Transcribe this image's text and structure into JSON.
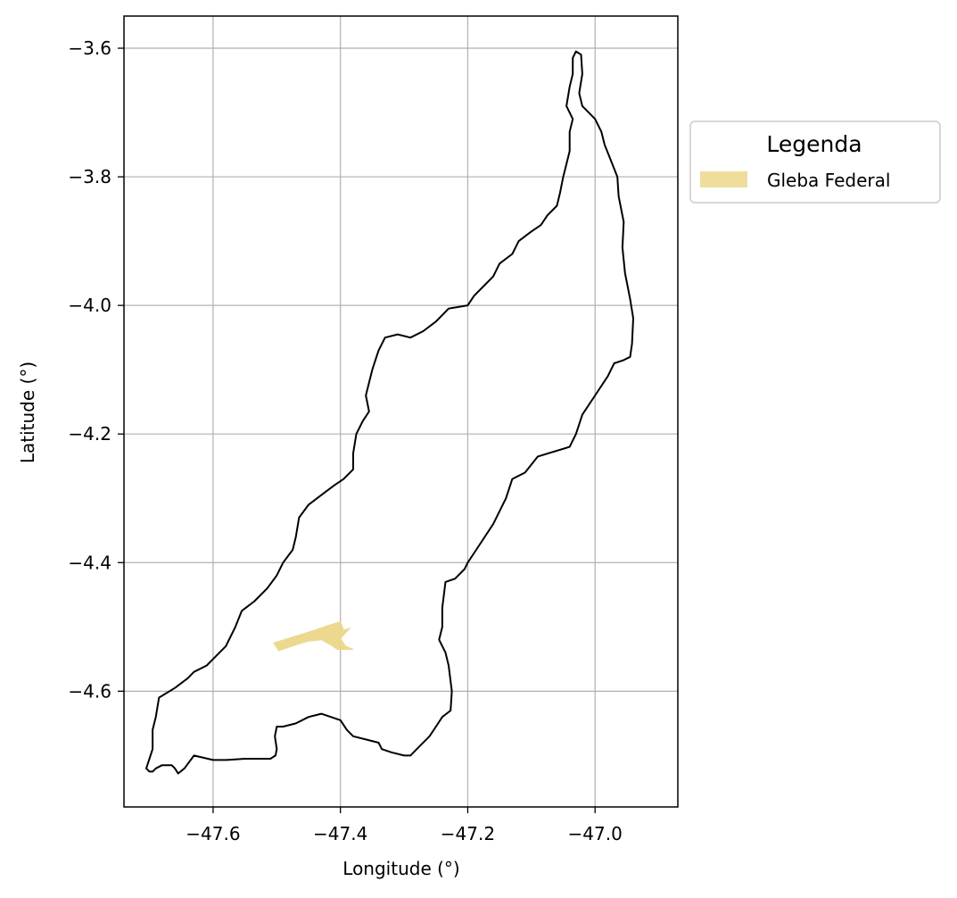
{
  "chart_data": {
    "type": "map",
    "xlabel": "Longitude (°)",
    "ylabel": "Latitude (°)",
    "xlim": [
      -47.74,
      -46.87
    ],
    "ylim": [
      -4.78,
      -3.55
    ],
    "grid": true,
    "x_ticks": [
      -47.6,
      -47.4,
      -47.2,
      -47.0
    ],
    "y_ticks": [
      -3.6,
      -3.8,
      -4.0,
      -4.2,
      -4.4,
      -4.6
    ],
    "x_tick_labels": [
      "−47.6",
      "−47.4",
      "−47.2",
      "−47.0"
    ],
    "y_tick_labels": [
      "−3.6",
      "−3.8",
      "−4.0",
      "−4.2",
      "−4.4",
      "−4.6"
    ],
    "legend": {
      "title": "Legenda",
      "placement": "outside-upper-right",
      "entries": [
        {
          "label": "Gleba Federal",
          "color": "#ecd78a"
        }
      ]
    },
    "layers": [
      {
        "name": "boundary",
        "type": "polygon-outline",
        "color": "#000000",
        "coords": [
          [
            -47.03,
            -3.605
          ],
          [
            -47.022,
            -3.61
          ],
          [
            -47.02,
            -3.64
          ],
          [
            -47.025,
            -3.67
          ],
          [
            -47.02,
            -3.69
          ],
          [
            -47.0,
            -3.71
          ],
          [
            -46.99,
            -3.73
          ],
          [
            -46.985,
            -3.75
          ],
          [
            -46.975,
            -3.775
          ],
          [
            -46.965,
            -3.8
          ],
          [
            -46.963,
            -3.83
          ],
          [
            -46.955,
            -3.87
          ],
          [
            -46.957,
            -3.91
          ],
          [
            -46.953,
            -3.95
          ],
          [
            -46.945,
            -3.99
          ],
          [
            -46.94,
            -4.02
          ],
          [
            -46.942,
            -4.06
          ],
          [
            -46.945,
            -4.08
          ],
          [
            -46.955,
            -4.085
          ],
          [
            -46.97,
            -4.09
          ],
          [
            -46.98,
            -4.11
          ],
          [
            -47.0,
            -4.14
          ],
          [
            -47.02,
            -4.17
          ],
          [
            -47.03,
            -4.2
          ],
          [
            -47.04,
            -4.22
          ],
          [
            -47.09,
            -4.235
          ],
          [
            -47.11,
            -4.26
          ],
          [
            -47.13,
            -4.27
          ],
          [
            -47.14,
            -4.3
          ],
          [
            -47.16,
            -4.34
          ],
          [
            -47.19,
            -4.385
          ],
          [
            -47.2,
            -4.4
          ],
          [
            -47.205,
            -4.41
          ],
          [
            -47.22,
            -4.425
          ],
          [
            -47.235,
            -4.43
          ],
          [
            -47.24,
            -4.47
          ],
          [
            -47.24,
            -4.5
          ],
          [
            -47.245,
            -4.52
          ],
          [
            -47.235,
            -4.54
          ],
          [
            -47.23,
            -4.56
          ],
          [
            -47.225,
            -4.6
          ],
          [
            -47.227,
            -4.63
          ],
          [
            -47.24,
            -4.64
          ],
          [
            -47.25,
            -4.655
          ],
          [
            -47.26,
            -4.67
          ],
          [
            -47.28,
            -4.69
          ],
          [
            -47.29,
            -4.7
          ],
          [
            -47.3,
            -4.7
          ],
          [
            -47.32,
            -4.695
          ],
          [
            -47.335,
            -4.69
          ],
          [
            -47.34,
            -4.68
          ],
          [
            -47.36,
            -4.675
          ],
          [
            -47.38,
            -4.67
          ],
          [
            -47.39,
            -4.66
          ],
          [
            -47.4,
            -4.645
          ],
          [
            -47.43,
            -4.635
          ],
          [
            -47.45,
            -4.64
          ],
          [
            -47.47,
            -4.65
          ],
          [
            -47.49,
            -4.655
          ],
          [
            -47.5,
            -4.655
          ],
          [
            -47.503,
            -4.67
          ],
          [
            -47.5,
            -4.69
          ],
          [
            -47.502,
            -4.7
          ],
          [
            -47.51,
            -4.705
          ],
          [
            -47.55,
            -4.705
          ],
          [
            -47.58,
            -4.707
          ],
          [
            -47.6,
            -4.707
          ],
          [
            -47.63,
            -4.7
          ],
          [
            -47.645,
            -4.72
          ],
          [
            -47.655,
            -4.728
          ],
          [
            -47.66,
            -4.72
          ],
          [
            -47.665,
            -4.715
          ],
          [
            -47.68,
            -4.715
          ],
          [
            -47.69,
            -4.72
          ],
          [
            -47.695,
            -4.725
          ],
          [
            -47.7,
            -4.725
          ],
          [
            -47.705,
            -4.72
          ],
          [
            -47.695,
            -4.69
          ],
          [
            -47.695,
            -4.66
          ],
          [
            -47.69,
            -4.64
          ],
          [
            -47.685,
            -4.61
          ],
          [
            -47.66,
            -4.595
          ],
          [
            -47.64,
            -4.58
          ],
          [
            -47.63,
            -4.57
          ],
          [
            -47.61,
            -4.56
          ],
          [
            -47.6,
            -4.55
          ],
          [
            -47.58,
            -4.53
          ],
          [
            -47.565,
            -4.5
          ],
          [
            -47.555,
            -4.475
          ],
          [
            -47.535,
            -4.46
          ],
          [
            -47.515,
            -4.44
          ],
          [
            -47.5,
            -4.42
          ],
          [
            -47.49,
            -4.4
          ],
          [
            -47.475,
            -4.38
          ],
          [
            -47.47,
            -4.36
          ],
          [
            -47.465,
            -4.33
          ],
          [
            -47.45,
            -4.31
          ],
          [
            -47.43,
            -4.295
          ],
          [
            -47.41,
            -4.28
          ],
          [
            -47.395,
            -4.27
          ],
          [
            -47.38,
            -4.255
          ],
          [
            -47.38,
            -4.23
          ],
          [
            -47.375,
            -4.2
          ],
          [
            -47.365,
            -4.18
          ],
          [
            -47.355,
            -4.165
          ],
          [
            -47.36,
            -4.14
          ],
          [
            -47.355,
            -4.12
          ],
          [
            -47.35,
            -4.1
          ],
          [
            -47.345,
            -4.085
          ],
          [
            -47.34,
            -4.07
          ],
          [
            -47.33,
            -4.05
          ],
          [
            -47.31,
            -4.045
          ],
          [
            -47.29,
            -4.05
          ],
          [
            -47.27,
            -4.04
          ],
          [
            -47.25,
            -4.025
          ],
          [
            -47.23,
            -4.005
          ],
          [
            -47.2,
            -4.0
          ],
          [
            -47.19,
            -3.985
          ],
          [
            -47.175,
            -3.97
          ],
          [
            -47.16,
            -3.955
          ],
          [
            -47.15,
            -3.935
          ],
          [
            -47.13,
            -3.92
          ],
          [
            -47.12,
            -3.9
          ],
          [
            -47.1,
            -3.885
          ],
          [
            -47.085,
            -3.875
          ],
          [
            -47.075,
            -3.86
          ],
          [
            -47.06,
            -3.845
          ],
          [
            -47.055,
            -3.825
          ],
          [
            -47.05,
            -3.8
          ],
          [
            -47.045,
            -3.78
          ],
          [
            -47.04,
            -3.76
          ],
          [
            -47.04,
            -3.73
          ],
          [
            -47.035,
            -3.71
          ],
          [
            -47.045,
            -3.69
          ],
          [
            -47.04,
            -3.66
          ],
          [
            -47.035,
            -3.64
          ],
          [
            -47.035,
            -3.615
          ],
          [
            -47.03,
            -3.605
          ]
        ]
      },
      {
        "name": "Gleba Federal",
        "type": "polygon-fill",
        "color": "#ecd78a",
        "coords": [
          [
            -47.505,
            -4.525
          ],
          [
            -47.44,
            -4.505
          ],
          [
            -47.42,
            -4.498
          ],
          [
            -47.4,
            -4.492
          ],
          [
            -47.395,
            -4.505
          ],
          [
            -47.385,
            -4.502
          ],
          [
            -47.4,
            -4.518
          ],
          [
            -47.392,
            -4.53
          ],
          [
            -47.38,
            -4.535
          ],
          [
            -47.405,
            -4.535
          ],
          [
            -47.415,
            -4.528
          ],
          [
            -47.43,
            -4.52
          ],
          [
            -47.45,
            -4.522
          ],
          [
            -47.47,
            -4.528
          ],
          [
            -47.497,
            -4.537
          ],
          [
            -47.505,
            -4.525
          ]
        ]
      }
    ]
  }
}
